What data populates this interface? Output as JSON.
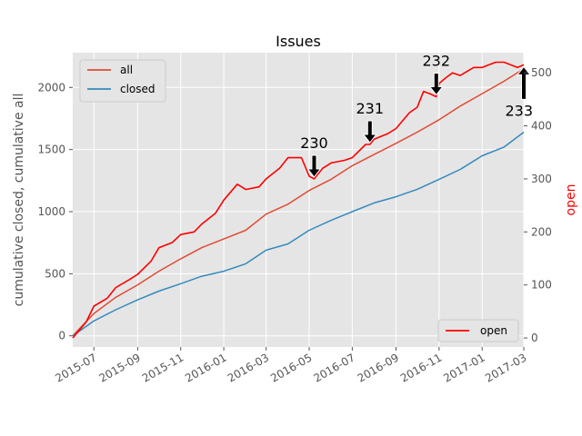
{
  "chart_data": {
    "type": "line",
    "title": "Issues",
    "xlabel": "",
    "ylabel": "cumulative closed, cumulative all",
    "ylabel_right": "open",
    "xlim": [
      "2015-06-01",
      "2017-03-01"
    ],
    "ylim": [
      -90,
      2280
    ],
    "ylim_right": [
      -17,
      538
    ],
    "x_ticks": [
      "2015-07",
      "2015-09",
      "2015-11",
      "2016-01",
      "2016-03",
      "2016-05",
      "2016-07",
      "2016-09",
      "2016-11",
      "2017-01",
      "2017-03"
    ],
    "y_ticks": [
      0,
      500,
      1000,
      1500,
      2000
    ],
    "y_ticks_right": [
      0,
      100,
      200,
      300,
      400,
      500
    ],
    "grid": true,
    "legend_left": {
      "placement": "upper-left",
      "entries": [
        "all",
        "closed"
      ]
    },
    "legend_right": {
      "placement": "lower-right",
      "entries": [
        "open"
      ]
    },
    "series": [
      {
        "name": "all",
        "axis": "left",
        "color": "#e24a33",
        "x": [
          "2015-06-01",
          "2015-07-01",
          "2015-08-01",
          "2015-09-01",
          "2015-10-01",
          "2015-11-01",
          "2015-12-01",
          "2016-01-01",
          "2016-02-01",
          "2016-03-01",
          "2016-04-01",
          "2016-05-01",
          "2016-06-01",
          "2016-07-01",
          "2016-08-01",
          "2016-09-01",
          "2016-10-01",
          "2016-11-01",
          "2016-12-01",
          "2017-01-01",
          "2017-02-01",
          "2017-03-01"
        ],
        "values": [
          0,
          180,
          310,
          410,
          520,
          620,
          710,
          780,
          850,
          980,
          1060,
          1170,
          1260,
          1370,
          1460,
          1550,
          1640,
          1740,
          1850,
          1950,
          2050,
          2150
        ]
      },
      {
        "name": "closed",
        "axis": "left",
        "color": "#348abd",
        "x": [
          "2015-06-01",
          "2015-07-01",
          "2015-08-01",
          "2015-09-01",
          "2015-10-01",
          "2015-11-01",
          "2015-12-01",
          "2016-01-01",
          "2016-02-01",
          "2016-03-01",
          "2016-04-01",
          "2016-05-01",
          "2016-06-01",
          "2016-07-01",
          "2016-08-01",
          "2016-09-01",
          "2016-10-01",
          "2016-11-01",
          "2016-12-01",
          "2017-01-01",
          "2017-02-01",
          "2017-03-01"
        ],
        "values": [
          0,
          120,
          210,
          290,
          360,
          420,
          480,
          520,
          580,
          690,
          740,
          850,
          930,
          1000,
          1070,
          1120,
          1180,
          1260,
          1340,
          1450,
          1520,
          1640
        ]
      },
      {
        "name": "open",
        "axis": "right",
        "color": "#ff0000",
        "x": [
          "2015-06-01",
          "2015-06-20",
          "2015-07-01",
          "2015-07-20",
          "2015-08-01",
          "2015-08-20",
          "2015-09-01",
          "2015-09-20",
          "2015-10-01",
          "2015-10-20",
          "2015-11-01",
          "2015-11-20",
          "2015-12-01",
          "2015-12-20",
          "2016-01-01",
          "2016-01-20",
          "2016-02-01",
          "2016-02-20",
          "2016-03-01",
          "2016-03-20",
          "2016-04-01",
          "2016-04-20",
          "2016-05-01",
          "2016-05-08",
          "2016-05-20",
          "2016-06-01",
          "2016-06-20",
          "2016-07-01",
          "2016-07-20",
          "2016-07-26",
          "2016-08-01",
          "2016-08-20",
          "2016-09-01",
          "2016-09-20",
          "2016-10-01",
          "2016-10-10",
          "2016-10-20",
          "2016-10-28",
          "2016-11-01",
          "2016-11-10",
          "2016-11-20",
          "2016-12-01",
          "2016-12-20",
          "2017-01-01",
          "2017-01-20",
          "2017-02-01",
          "2017-02-20",
          "2017-03-01"
        ],
        "values": [
          0,
          30,
          60,
          75,
          95,
          110,
          120,
          145,
          170,
          180,
          195,
          200,
          215,
          235,
          260,
          290,
          280,
          285,
          300,
          320,
          340,
          340,
          305,
          300,
          320,
          330,
          335,
          340,
          365,
          365,
          375,
          385,
          395,
          425,
          435,
          465,
          460,
          455,
          480,
          490,
          500,
          495,
          510,
          510,
          520,
          520,
          510,
          515
        ]
      }
    ],
    "annotations": [
      {
        "text": "230",
        "x": "2016-05-08",
        "y": 300,
        "axis": "right",
        "direction": "down"
      },
      {
        "text": "231",
        "x": "2016-07-26",
        "y": 365,
        "axis": "right",
        "direction": "down"
      },
      {
        "text": "232",
        "x": "2016-10-28",
        "y": 455,
        "axis": "right",
        "direction": "down"
      },
      {
        "text": "233",
        "x": "2017-03-01",
        "y": 515,
        "axis": "right",
        "direction": "up"
      }
    ]
  }
}
